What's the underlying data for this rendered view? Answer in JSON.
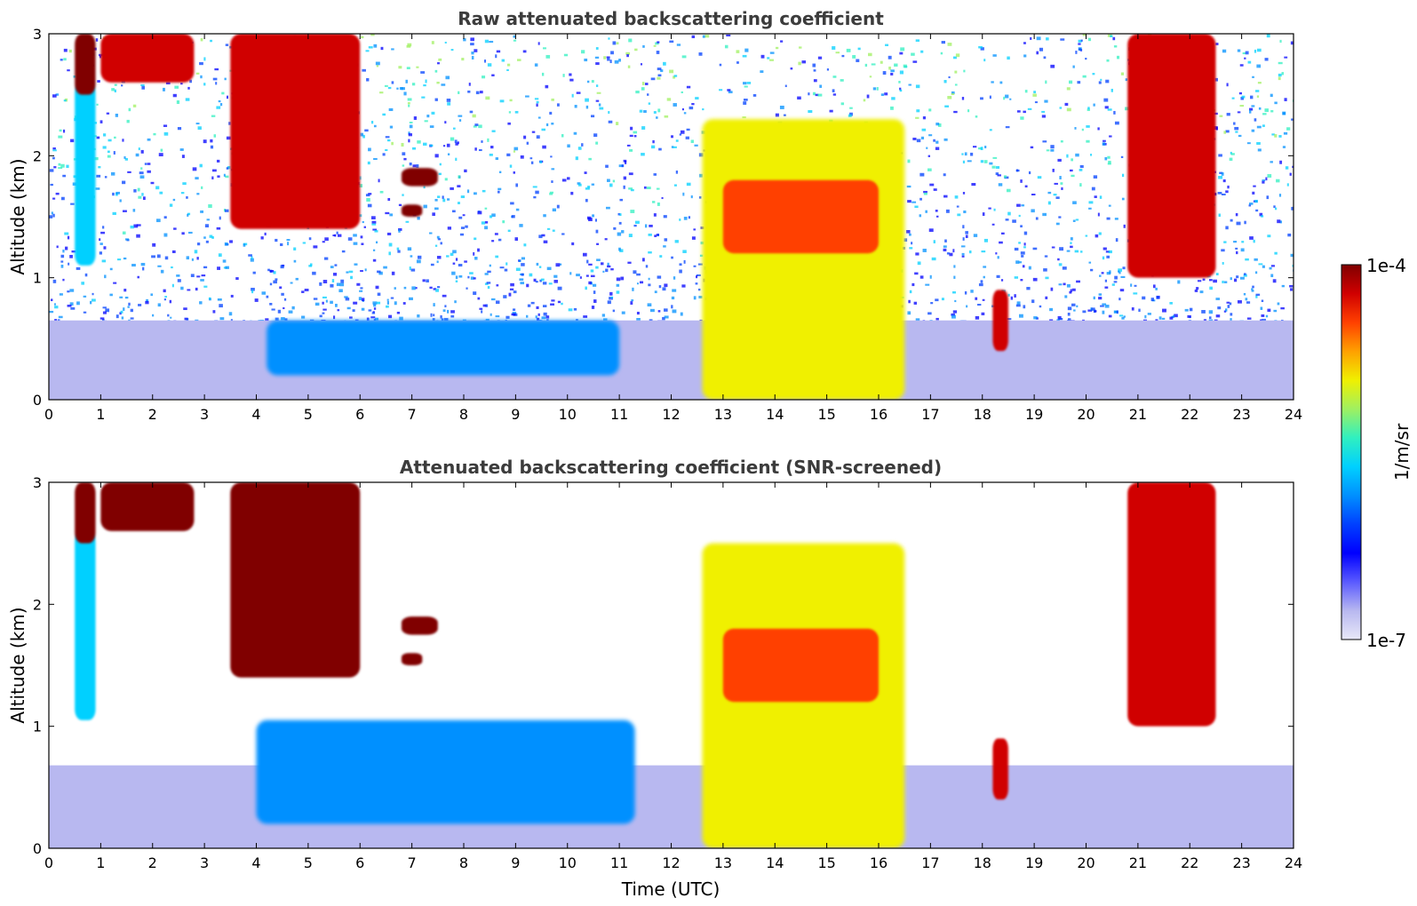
{
  "chart_data": [
    {
      "type": "heatmap",
      "title": "Raw attenuated backscattering coefficient",
      "xlabel": "",
      "ylabel": "Altitude (km)",
      "xlim": [
        0,
        24
      ],
      "ylim": [
        0,
        3
      ],
      "x_ticks": [
        "0",
        "1",
        "2",
        "3",
        "4",
        "5",
        "6",
        "7",
        "8",
        "9",
        "10",
        "11",
        "12",
        "13",
        "14",
        "15",
        "16",
        "17",
        "18",
        "19",
        "20",
        "21",
        "22",
        "23",
        "24"
      ],
      "y_ticks": [
        "0",
        "1",
        "2",
        "3"
      ],
      "noise_above_surface_layer": true,
      "features": [
        {
          "name": "boundary-layer-noise",
          "t": [
            0,
            24
          ],
          "z": [
            0,
            0.65
          ],
          "value": 1.5e-07
        },
        {
          "name": "aerosol-layer",
          "t": [
            4.2,
            11.0
          ],
          "z": [
            0.2,
            0.65
          ],
          "value": 1.5e-06
        },
        {
          "name": "virga-0.7h",
          "t": [
            0.5,
            0.9
          ],
          "z": [
            1.1,
            2.6
          ],
          "value": 3e-06
        },
        {
          "name": "cloud-0.6h",
          "t": [
            0.5,
            0.9
          ],
          "z": [
            2.5,
            3.0
          ],
          "value": 8e-05
        },
        {
          "name": "clouds-1-3h",
          "t": [
            1.0,
            2.8
          ],
          "z": [
            2.6,
            3.0
          ],
          "value": 6e-05
        },
        {
          "name": "clouds-3.5-6h",
          "t": [
            3.5,
            6.0
          ],
          "z": [
            1.4,
            3.0
          ],
          "value": 7e-05
        },
        {
          "name": "cloud-7h-upper",
          "t": [
            6.8,
            7.5
          ],
          "z": [
            1.75,
            1.9
          ],
          "value": 9e-05
        },
        {
          "name": "cloud-7h-lower",
          "t": [
            6.8,
            7.2
          ],
          "z": [
            1.5,
            1.6
          ],
          "value": 9e-05
        },
        {
          "name": "main-cloud-deck",
          "t": [
            12.6,
            16.5
          ],
          "z": [
            0.0,
            2.3
          ],
          "value": 1e-05
        },
        {
          "name": "main-cloud-top",
          "t": [
            13.0,
            16.0
          ],
          "z": [
            1.2,
            1.8
          ],
          "value": 4e-05
        },
        {
          "name": "cloud-21-22h",
          "t": [
            20.8,
            22.5
          ],
          "z": [
            1.0,
            3.0
          ],
          "value": 5e-05
        },
        {
          "name": "cloud-18h",
          "t": [
            18.2,
            18.5
          ],
          "z": [
            0.4,
            0.9
          ],
          "value": 6e-05
        }
      ]
    },
    {
      "type": "heatmap",
      "title": "Attenuated backscattering coefficient (SNR-screened)",
      "xlabel": "Time (UTC)",
      "ylabel": "Altitude (km)",
      "xlim": [
        0,
        24
      ],
      "ylim": [
        0,
        3
      ],
      "x_ticks": [
        "0",
        "1",
        "2",
        "3",
        "4",
        "5",
        "6",
        "7",
        "8",
        "9",
        "10",
        "11",
        "12",
        "13",
        "14",
        "15",
        "16",
        "17",
        "18",
        "19",
        "20",
        "21",
        "22",
        "23",
        "24"
      ],
      "y_ticks": [
        "0",
        "1",
        "2",
        "3"
      ],
      "noise_above_surface_layer": false,
      "features": [
        {
          "name": "boundary-layer",
          "t": [
            0,
            24
          ],
          "z": [
            0,
            0.68
          ],
          "value": 1.5e-07
        },
        {
          "name": "aerosol-layer",
          "t": [
            4.0,
            11.3
          ],
          "z": [
            0.2,
            1.05
          ],
          "value": 1.5e-06
        },
        {
          "name": "virga-0.7h",
          "t": [
            0.5,
            0.9
          ],
          "z": [
            1.05,
            2.6
          ],
          "value": 3e-06
        },
        {
          "name": "cloud-0.6h",
          "t": [
            0.5,
            0.9
          ],
          "z": [
            2.5,
            3.0
          ],
          "value": 8e-05
        },
        {
          "name": "clouds-1-3h",
          "t": [
            1.0,
            2.8
          ],
          "z": [
            2.6,
            3.0
          ],
          "value": 0.0001
        },
        {
          "name": "clouds-3.5-6h",
          "t": [
            3.5,
            6.0
          ],
          "z": [
            1.4,
            3.0
          ],
          "value": 0.0001
        },
        {
          "name": "cloud-7h-upper",
          "t": [
            6.8,
            7.5
          ],
          "z": [
            1.75,
            1.9
          ],
          "value": 0.0001
        },
        {
          "name": "cloud-7h-lower",
          "t": [
            6.8,
            7.2
          ],
          "z": [
            1.5,
            1.6
          ],
          "value": 0.0001
        },
        {
          "name": "main-cloud-deck",
          "t": [
            12.6,
            16.5
          ],
          "z": [
            0.0,
            2.5
          ],
          "value": 1e-05
        },
        {
          "name": "main-cloud-top",
          "t": [
            13.0,
            16.0
          ],
          "z": [
            1.2,
            1.8
          ],
          "value": 4e-05
        },
        {
          "name": "cloud-21-22h",
          "t": [
            20.8,
            22.5
          ],
          "z": [
            1.0,
            3.0
          ],
          "value": 5e-05
        },
        {
          "name": "cloud-18h",
          "t": [
            18.2,
            18.5
          ],
          "z": [
            0.4,
            0.9
          ],
          "value": 6e-05
        }
      ]
    }
  ],
  "colorbar": {
    "label": "1/m/sr",
    "max_label": "1e-4",
    "min_label": "1e-7",
    "scale": "log",
    "range": [
      1e-07,
      0.0001
    ],
    "colors": [
      "#e8e8f8",
      "#b8b8f0",
      "#5a5aff",
      "#0000ff",
      "#0040ff",
      "#0090ff",
      "#00d0ff",
      "#30f0c0",
      "#a0f060",
      "#f0f000",
      "#ffa000",
      "#ff4000",
      "#d00000",
      "#800000"
    ]
  }
}
